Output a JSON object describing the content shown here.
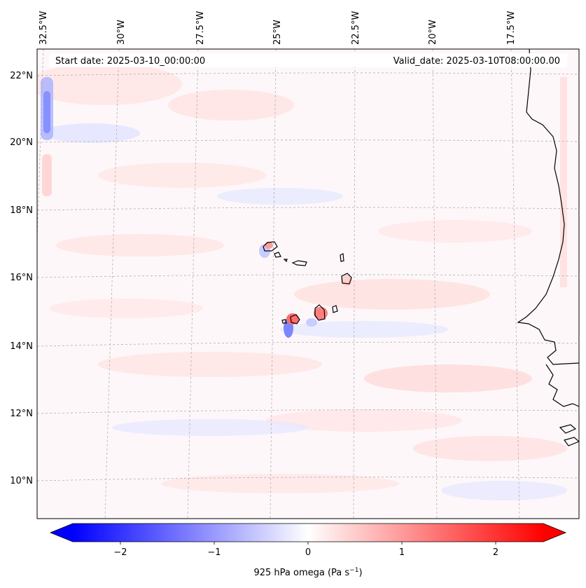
{
  "header": {
    "start_date": "Start date: 2025-03-10_00:00:00",
    "valid_date": "Valid_date: 2025-03-10T08:00:00.00"
  },
  "axes": {
    "lon_labels": [
      "32.5°W",
      "30°W",
      "27.5°W",
      "25°W",
      "22.5°W",
      "20°W",
      "17.5°W"
    ],
    "lat_labels": [
      "22°N",
      "20°N",
      "18°N",
      "16°N",
      "14°N",
      "12°N",
      "10°N"
    ]
  },
  "colorbar": {
    "ticks": [
      "−2",
      "−1",
      "0",
      "1",
      "2"
    ],
    "label": "925 hPa omega (Pa s",
    "label_sup": "−1",
    "label_close": ")",
    "range": [
      -2.7,
      2.7
    ],
    "colormap": "bwr",
    "low_color": "#0000ff",
    "mid_color": "#ffffff",
    "high_color": "#ff0000",
    "extend": "both"
  },
  "colors": {
    "coastline": "#000000",
    "gridline": "#b0b0b0",
    "frame": "#000000"
  }
}
